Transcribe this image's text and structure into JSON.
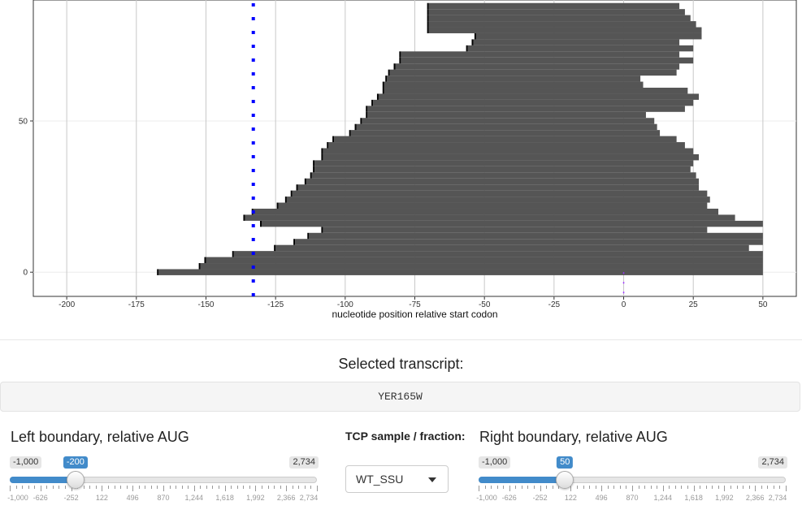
{
  "chart_data": {
    "type": "heatmap",
    "title": "",
    "xlabel": "nucleotide position relative start codon",
    "ylabel": "",
    "xlim": [
      -212,
      62
    ],
    "ylim": [
      -8,
      90
    ],
    "x_ticks": [
      -200,
      -175,
      -150,
      -125,
      -100,
      -75,
      -50,
      -25,
      0,
      25,
      50
    ],
    "y_ticks": [
      0,
      50
    ],
    "grid": true,
    "bar_color": "#555555",
    "edge_color": "#000000",
    "marker_blue_x": -133,
    "marker_blue_color": "#0000ff",
    "marker_purple_x": 0,
    "marker_purple_color": "#9b30ff",
    "rows": [
      {
        "y": 0,
        "segments": [
          [
            -167,
            50
          ]
        ]
      },
      {
        "y": 2,
        "segments": [
          [
            -152,
            50
          ]
        ]
      },
      {
        "y": 4,
        "segments": [
          [
            -150,
            50
          ]
        ]
      },
      {
        "y": 6,
        "segments": [
          [
            -140,
            50
          ]
        ]
      },
      {
        "y": 8,
        "segments": [
          [
            -125,
            45
          ]
        ]
      },
      {
        "y": 10,
        "segments": [
          [
            -118,
            50
          ]
        ]
      },
      {
        "y": 12,
        "segments": [
          [
            -113,
            50
          ]
        ]
      },
      {
        "y": 14,
        "segments": [
          [
            -108,
            30
          ]
        ]
      },
      {
        "y": 16,
        "segments": [
          [
            -130,
            50
          ]
        ]
      },
      {
        "y": 18,
        "segments": [
          [
            -136,
            40
          ]
        ]
      },
      {
        "y": 20,
        "segments": [
          [
            -133,
            34
          ]
        ]
      },
      {
        "y": 22,
        "segments": [
          [
            -124,
            30
          ]
        ]
      },
      {
        "y": 24,
        "segments": [
          [
            -121,
            31
          ]
        ]
      },
      {
        "y": 26,
        "segments": [
          [
            -119,
            30
          ]
        ]
      },
      {
        "y": 28,
        "segments": [
          [
            -117,
            27
          ]
        ]
      },
      {
        "y": 30,
        "segments": [
          [
            -114,
            27
          ]
        ]
      },
      {
        "y": 32,
        "segments": [
          [
            -112,
            26
          ]
        ]
      },
      {
        "y": 34,
        "segments": [
          [
            -111,
            24
          ]
        ]
      },
      {
        "y": 36,
        "segments": [
          [
            -111,
            25
          ]
        ]
      },
      {
        "y": 38,
        "segments": [
          [
            -108,
            27
          ]
        ]
      },
      {
        "y": 40,
        "segments": [
          [
            -108,
            25
          ]
        ]
      },
      {
        "y": 42,
        "segments": [
          [
            -106,
            22
          ]
        ]
      },
      {
        "y": 44,
        "segments": [
          [
            -104,
            19
          ]
        ]
      },
      {
        "y": 46,
        "segments": [
          [
            -98,
            13
          ]
        ]
      },
      {
        "y": 48,
        "segments": [
          [
            -96,
            12
          ]
        ]
      },
      {
        "y": 50,
        "segments": [
          [
            -94,
            11
          ]
        ]
      },
      {
        "y": 52,
        "segments": [
          [
            -92,
            8
          ]
        ]
      },
      {
        "y": 54,
        "segments": [
          [
            -92,
            22
          ]
        ]
      },
      {
        "y": 56,
        "segments": [
          [
            -90,
            25
          ]
        ]
      },
      {
        "y": 58,
        "segments": [
          [
            -88,
            27
          ]
        ]
      },
      {
        "y": 60,
        "segments": [
          [
            -86,
            23
          ]
        ]
      },
      {
        "y": 62,
        "segments": [
          [
            -86,
            7
          ]
        ]
      },
      {
        "y": 64,
        "segments": [
          [
            -85,
            6
          ]
        ]
      },
      {
        "y": 66,
        "segments": [
          [
            -84,
            19
          ]
        ]
      },
      {
        "y": 68,
        "segments": [
          [
            -82,
            20
          ]
        ]
      },
      {
        "y": 70,
        "segments": [
          [
            -80,
            25
          ]
        ]
      },
      {
        "y": 72,
        "segments": [
          [
            -80,
            20
          ]
        ]
      },
      {
        "y": 74,
        "segments": [
          [
            -56,
            25
          ]
        ]
      },
      {
        "y": 76,
        "segments": [
          [
            -54,
            20
          ]
        ]
      },
      {
        "y": 78,
        "segments": [
          [
            -53,
            28
          ]
        ]
      },
      {
        "y": 80,
        "segments": [
          [
            -70,
            28
          ]
        ]
      },
      {
        "y": 82,
        "segments": [
          [
            -70,
            26
          ]
        ]
      },
      {
        "y": 84,
        "segments": [
          [
            -70,
            24
          ]
        ]
      },
      {
        "y": 86,
        "segments": [
          [
            -70,
            22
          ]
        ]
      },
      {
        "y": 88,
        "segments": [
          [
            -70,
            20
          ]
        ]
      }
    ]
  },
  "selected": {
    "title": "Selected transcript:",
    "value": "YER165W"
  },
  "left_slider": {
    "title": "Left boundary, relative AUG",
    "min_label": "-1,000",
    "max_label": "2,734",
    "value_label": "-200",
    "fraction": 0.214,
    "tick_labels": [
      "-1,000",
      "-626",
      "-252",
      "122",
      "496",
      "870",
      "1,244",
      "1,618",
      "1,992",
      "2,366",
      "2,734"
    ]
  },
  "right_slider": {
    "title": "Right boundary, relative AUG",
    "min_label": "-1,000",
    "max_label": "2,734",
    "value_label": "50",
    "fraction": 0.281,
    "tick_labels": [
      "-1,000",
      "-626",
      "-252",
      "122",
      "496",
      "870",
      "1,244",
      "1,618",
      "1,992",
      "2,366",
      "2,734"
    ]
  },
  "sample": {
    "title": "TCP sample / fraction:",
    "value": "WT_SSU"
  }
}
